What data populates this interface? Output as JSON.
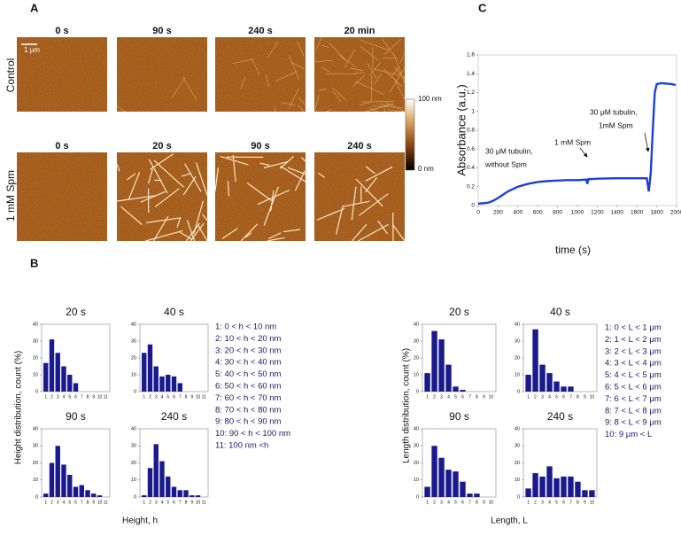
{
  "panel_labels": [
    "A",
    "B",
    "C"
  ],
  "panel_a": {
    "rows": [
      {
        "label": "Control",
        "times": [
          "0 s",
          "90 s",
          "240 s",
          "20 min"
        ]
      },
      {
        "label": "1 mM Spm",
        "times": [
          "0 s",
          "20 s",
          "90 s",
          "240 s"
        ]
      }
    ],
    "scale_bar": "1 μm",
    "colorbar": {
      "max": "100 nm",
      "min": "0 nm"
    }
  },
  "height_group": {
    "ylabel": "Height distribution, count (%)",
    "xlabel": "Height, h",
    "legend": [
      "1: 0 < h < 10 nm",
      "2: 10 < h < 20 nm",
      "3: 20 < h < 30 nm",
      "4: 30 < h < 40 nm",
      "5: 40 < h < 50 nm",
      "6: 50 < h < 60 nm",
      "7: 60 < h < 70 nm",
      "8: 70 < h < 80 nm",
      "9: 80 < h < 90 nm",
      "10: 90 < h < 100 nm",
      "11: 100 nm <h"
    ]
  },
  "length_group": {
    "ylabel": "Length distribution, count (%)",
    "xlabel": "Length, L",
    "legend": [
      "1: 0 < L < 1 μm",
      "2: 1 < L < 2 μm",
      "3: 2 < L < 3 μm",
      "4: 3 < L < 4 μm",
      "5: 4 < L < 5 μm",
      "6: 5 < L < 6 μm",
      "7: 6 < L < 7 μm",
      "8: 7 < L < 8 μm",
      "9: 8 < L < 9 μm",
      "10: 9 μm < L"
    ]
  },
  "chart_data": [
    {
      "type": "line",
      "xlabel": "time (s)",
      "ylabel": "Absorbance (a.u.)",
      "color": "#1f3fd4",
      "x": [
        0,
        100,
        150,
        200,
        300,
        400,
        500,
        600,
        700,
        800,
        900,
        1000,
        1090,
        1100,
        1110,
        1200,
        1400,
        1600,
        1700,
        1720,
        1740,
        1760,
        1780,
        1800,
        1850,
        1950,
        1990
      ],
      "values": [
        0.02,
        0.03,
        0.05,
        0.08,
        0.15,
        0.2,
        0.23,
        0.25,
        0.26,
        0.265,
        0.27,
        0.27,
        0.275,
        0.23,
        0.28,
        0.285,
        0.29,
        0.29,
        0.29,
        0.15,
        0.35,
        0.8,
        1.2,
        1.29,
        1.3,
        1.29,
        1.28
      ],
      "xlim": [
        0,
        2000
      ],
      "xticks": [
        0,
        200,
        400,
        600,
        800,
        1000,
        1200,
        1400,
        1600,
        1800,
        2000
      ],
      "ylim": [
        0,
        1.6
      ],
      "yticks": [
        0,
        0.2,
        0.4,
        0.6,
        0.8,
        1,
        1.2,
        1.4,
        1.6
      ],
      "annotations": [
        [
          "30 μM tubulin,",
          "without Spm"
        ],
        [
          "1 mM Spm"
        ],
        [
          "30 μM tubulin,",
          "1mM Spm"
        ]
      ]
    },
    {
      "type": "bar",
      "title": "20 s",
      "color": "#1a1a8c",
      "categories": [
        "1",
        "2",
        "3",
        "4",
        "5",
        "6",
        "7",
        "8",
        "9",
        "10",
        "11"
      ],
      "values": [
        17,
        31,
        23,
        15,
        10,
        5,
        0,
        0,
        0,
        0,
        0
      ],
      "ylim": [
        0,
        40
      ],
      "yticks": [
        0,
        10,
        20,
        30,
        40
      ]
    },
    {
      "type": "bar",
      "title": "40 s",
      "color": "#1a1a8c",
      "categories": [
        "1",
        "2",
        "3",
        "4",
        "5",
        "6",
        "7",
        "8",
        "9",
        "10",
        "11"
      ],
      "values": [
        23,
        28,
        15,
        9,
        10,
        9,
        5,
        0,
        0,
        0,
        0
      ],
      "ylim": [
        0,
        40
      ],
      "yticks": [
        0,
        10,
        20,
        30,
        40
      ]
    },
    {
      "type": "bar",
      "title": "90 s",
      "color": "#1a1a8c",
      "categories": [
        "1",
        "2",
        "3",
        "4",
        "5",
        "6",
        "7",
        "8",
        "9",
        "10",
        "11"
      ],
      "values": [
        2,
        20,
        30,
        19,
        13,
        6,
        7,
        4,
        2,
        1,
        0
      ],
      "ylim": [
        0,
        40
      ],
      "yticks": [
        0,
        10,
        20,
        30,
        40
      ]
    },
    {
      "type": "bar",
      "title": "240 s",
      "color": "#1a1a8c",
      "categories": [
        "1",
        "2",
        "3",
        "4",
        "5",
        "6",
        "7",
        "8",
        "9",
        "10",
        "11"
      ],
      "values": [
        1,
        17,
        31,
        21,
        12,
        6,
        4,
        4,
        1,
        1,
        0
      ],
      "ylim": [
        0,
        40
      ],
      "yticks": [
        0,
        10,
        20,
        30,
        40
      ]
    },
    {
      "type": "bar",
      "title": "20 s",
      "color": "#1a1a8c",
      "categories": [
        "1",
        "2",
        "3",
        "4",
        "5",
        "6",
        "7",
        "8",
        "9",
        "10"
      ],
      "values": [
        11,
        36,
        31,
        16,
        3,
        1,
        0,
        0,
        0,
        0
      ],
      "ylim": [
        0,
        40
      ],
      "yticks": [
        0,
        10,
        20,
        30,
        40
      ]
    },
    {
      "type": "bar",
      "title": "40 s",
      "color": "#1a1a8c",
      "categories": [
        "1",
        "2",
        "3",
        "4",
        "5",
        "6",
        "7",
        "8",
        "9",
        "10"
      ],
      "values": [
        10,
        37,
        16,
        11,
        6,
        3,
        3,
        0,
        0,
        0
      ],
      "ylim": [
        0,
        40
      ],
      "yticks": [
        0,
        10,
        20,
        30,
        40
      ]
    },
    {
      "type": "bar",
      "title": "90 s",
      "color": "#1a1a8c",
      "categories": [
        "1",
        "2",
        "3",
        "4",
        "5",
        "6",
        "7",
        "8",
        "9",
        "10"
      ],
      "values": [
        6,
        30,
        23,
        16,
        15,
        9,
        2,
        2,
        0,
        0
      ],
      "ylim": [
        0,
        40
      ],
      "yticks": [
        0,
        10,
        20,
        30,
        40
      ]
    },
    {
      "type": "bar",
      "title": "240 s",
      "color": "#1a1a8c",
      "categories": [
        "1",
        "2",
        "3",
        "4",
        "5",
        "6",
        "7",
        "8",
        "9",
        "10"
      ],
      "values": [
        5,
        14,
        12,
        18,
        11,
        12,
        12,
        9,
        4,
        4
      ],
      "ylim": [
        0,
        40
      ],
      "yticks": [
        0,
        10,
        20,
        30,
        40
      ]
    }
  ]
}
